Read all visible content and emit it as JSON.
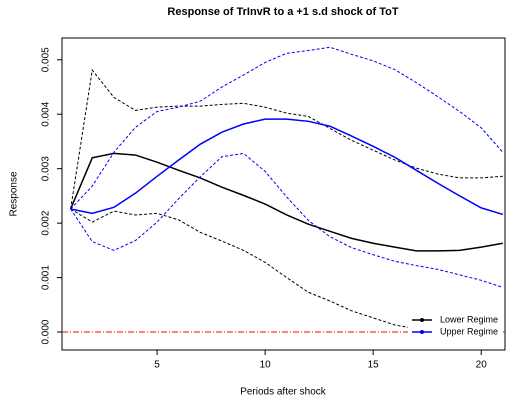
{
  "chart_data": {
    "type": "line",
    "title": "Response of TrInvR to a +1 s.d shock of ToT",
    "x_label": "Periods after shock",
    "y_label": "Response",
    "x": [
      1,
      2,
      3,
      4,
      5,
      6,
      7,
      8,
      9,
      10,
      11,
      12,
      13,
      14,
      15,
      16,
      17,
      18,
      19,
      20,
      21
    ],
    "series": [
      {
        "name": "Lower Regime",
        "color": "#000000",
        "values": [
          0.00226,
          0.0032,
          0.00328,
          0.00325,
          0.00312,
          0.00297,
          0.00283,
          0.00266,
          0.00251,
          0.00235,
          0.00215,
          0.00198,
          0.00185,
          0.00172,
          0.00163,
          0.00156,
          0.00149,
          0.00149,
          0.0015,
          0.00156,
          0.00163
        ],
        "upper": [
          0.00226,
          0.00481,
          0.00431,
          0.00407,
          0.00413,
          0.00415,
          0.00415,
          0.00418,
          0.0042,
          0.00413,
          0.00402,
          0.00396,
          0.00374,
          0.00352,
          0.00334,
          0.00316,
          0.00301,
          0.0029,
          0.00283,
          0.00283,
          0.00286
        ],
        "lower": [
          0.00226,
          0.00202,
          0.00222,
          0.00215,
          0.00218,
          0.00206,
          0.00183,
          0.00167,
          0.0015,
          0.00128,
          0.001,
          0.00073,
          0.00057,
          0.00039,
          0.00026,
          0.00013,
          6e-05,
          2e-05,
          0,
          0,
          0
        ]
      },
      {
        "name": "Upper Regime",
        "color": "#0000ff",
        "values": [
          0.00226,
          0.00218,
          0.00229,
          0.00255,
          0.00286,
          0.00316,
          0.00345,
          0.00367,
          0.00382,
          0.00391,
          0.00391,
          0.00387,
          0.00378,
          0.0036,
          0.00341,
          0.00321,
          0.00297,
          0.00273,
          0.0025,
          0.00228,
          0.00216
        ],
        "upper": [
          0.00226,
          0.00268,
          0.0033,
          0.00376,
          0.00405,
          0.00413,
          0.00424,
          0.0045,
          0.00472,
          0.00495,
          0.00512,
          0.00517,
          0.00523,
          0.0051,
          0.00498,
          0.00482,
          0.00458,
          0.00432,
          0.00405,
          0.00375,
          0.0033
        ],
        "lower": [
          0.00226,
          0.00166,
          0.0015,
          0.00168,
          0.00202,
          0.00245,
          0.00285,
          0.00322,
          0.00328,
          0.00295,
          0.00248,
          0.00205,
          0.00175,
          0.00155,
          0.00142,
          0.0013,
          0.00122,
          0.00115,
          0.00105,
          0.00095,
          0.00082
        ]
      }
    ],
    "reference_line": {
      "value": 0,
      "color": "#ff0000"
    },
    "xlim": [
      0.6,
      21.1
    ],
    "ylim": [
      -0.00033,
      0.0054
    ],
    "xticks": [
      5,
      10,
      15,
      20
    ],
    "yticks": [
      {
        "value": 0,
        "label": "0.000"
      },
      {
        "value": 0.001,
        "label": "0.001"
      },
      {
        "value": 0.002,
        "label": "0.002"
      },
      {
        "value": 0.003,
        "label": "0.003"
      },
      {
        "value": 0.004,
        "label": "0.004"
      },
      {
        "value": 0.005,
        "label": "0.005"
      }
    ],
    "legend_position": "bottom-right"
  }
}
